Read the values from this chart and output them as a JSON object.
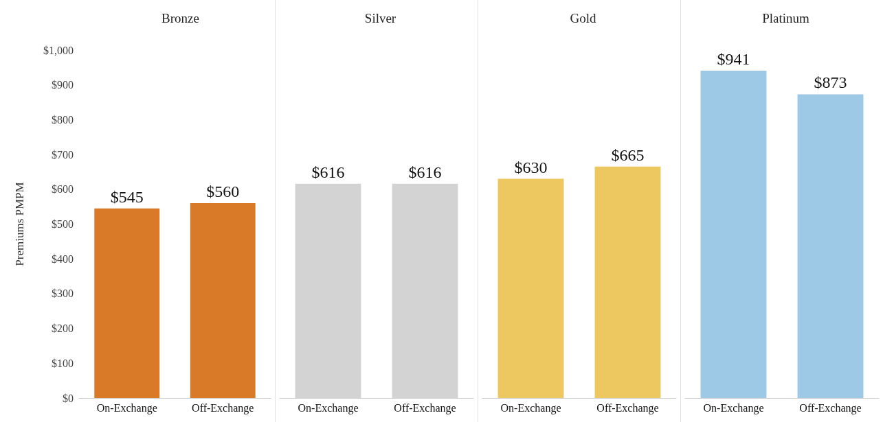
{
  "chart_data": [
    {
      "type": "bar",
      "title": "Bronze",
      "ylabel": "Premiums PMPM",
      "categories": [
        "On-Exchange",
        "Off-Exchange"
      ],
      "values": [
        545,
        560
      ],
      "value_labels": [
        "$545",
        "$560"
      ],
      "color": "#d87a28",
      "ylim": [
        0,
        1000
      ],
      "yticks": [
        {
          "value": 0,
          "label": "$0"
        },
        {
          "value": 100,
          "label": "$100"
        },
        {
          "value": 200,
          "label": "$200"
        },
        {
          "value": 300,
          "label": "$300"
        },
        {
          "value": 400,
          "label": "$400"
        },
        {
          "value": 500,
          "label": "$500"
        },
        {
          "value": 600,
          "label": "$600"
        },
        {
          "value": 700,
          "label": "$700"
        },
        {
          "value": 800,
          "label": "$800"
        },
        {
          "value": 900,
          "label": "$900"
        },
        {
          "value": 1000,
          "label": "$1,000"
        }
      ]
    },
    {
      "type": "bar",
      "title": "Silver",
      "categories": [
        "On-Exchange",
        "Off-Exchange"
      ],
      "values": [
        616,
        616
      ],
      "value_labels": [
        "$616",
        "$616"
      ],
      "color": "#d3d3d3",
      "ylim": [
        0,
        1000
      ],
      "tick_labels": "x"
    },
    {
      "type": "bar",
      "title": "Gold",
      "categories": [
        "On-Exchange",
        "Off-Exchange"
      ],
      "values": [
        630,
        665
      ],
      "value_labels": [
        "$630",
        "$665"
      ],
      "color": "#edc75f",
      "ylim": [
        0,
        1000
      ],
      "tick_labels": "x"
    },
    {
      "type": "bar",
      "title": "Platinum",
      "categories": [
        "On-Exchange",
        "Off-Exchange"
      ],
      "values": [
        941,
        873
      ],
      "value_labels": [
        "$941",
        "$873"
      ],
      "color": "#9dc8e6",
      "ylim": [
        0,
        1000
      ],
      "tick_labels": "x"
    }
  ]
}
